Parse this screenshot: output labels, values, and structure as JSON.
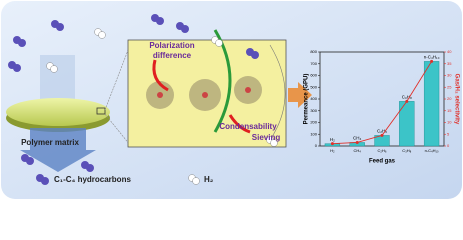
{
  "diagram": {
    "polarization": [
      "Polarization",
      "difference"
    ],
    "condensability": "Condensability",
    "sieving": "Sieving",
    "matrix": "Polymer matrix",
    "hydrocarbons": "C₁-C₄ hydrocarbons",
    "hydrogen": "H₂"
  },
  "chart_data": {
    "type": "bar",
    "categories": [
      "H₂",
      "CH₄",
      "C₂H₆",
      "C₃H₈",
      "n-C₄H₁₀"
    ],
    "xlabel": "Feed gas",
    "ylabel": "Permeance (GPU)",
    "y2label": "Gas/H₂ selectivity",
    "ylim": [
      0,
      800
    ],
    "yticks": [
      0,
      100,
      200,
      300,
      400,
      500,
      600,
      700,
      800
    ],
    "y2lim": [
      0,
      40
    ],
    "y2ticks": [
      0,
      5,
      10,
      15,
      20,
      25,
      30,
      35,
      40
    ],
    "series": [
      {
        "type": "bar",
        "color": "#3cc4c8",
        "values": [
          20,
          30,
          90,
          380,
          720
        ]
      },
      {
        "type": "line",
        "axis": "y2",
        "color": "#e0302a",
        "values": [
          1,
          1.5,
          4.5,
          19,
          36
        ]
      }
    ]
  }
}
